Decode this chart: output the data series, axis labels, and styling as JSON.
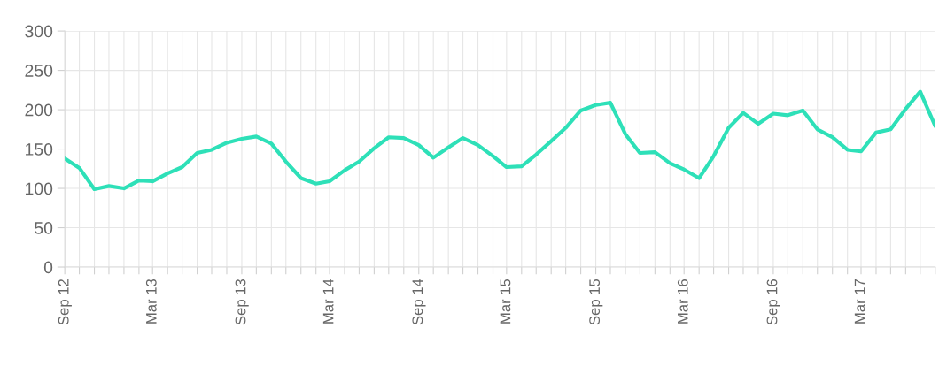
{
  "chart_data": {
    "type": "line",
    "x": [
      "2012-09",
      "2012-10",
      "2012-11",
      "2012-12",
      "2013-01",
      "2013-02",
      "2013-03",
      "2013-04",
      "2013-05",
      "2013-06",
      "2013-07",
      "2013-08",
      "2013-09",
      "2013-10",
      "2013-11",
      "2013-12",
      "2014-01",
      "2014-02",
      "2014-03",
      "2014-04",
      "2014-05",
      "2014-06",
      "2014-07",
      "2014-08",
      "2014-09",
      "2014-10",
      "2014-11",
      "2014-12",
      "2015-01",
      "2015-02",
      "2015-03",
      "2015-04",
      "2015-05",
      "2015-06",
      "2015-07",
      "2015-08",
      "2015-09",
      "2015-10",
      "2015-11",
      "2015-12",
      "2016-01",
      "2016-02",
      "2016-03",
      "2016-04",
      "2016-05",
      "2016-06",
      "2016-07",
      "2016-08",
      "2016-09",
      "2016-10",
      "2016-11",
      "2016-12",
      "2017-01",
      "2017-02",
      "2017-03",
      "2017-04",
      "2017-05",
      "2017-06",
      "2017-07",
      "2017-08"
    ],
    "series": [
      {
        "color": "#2ee0b8",
        "values": [
          138,
          126,
          99,
          103,
          100,
          110,
          109,
          119,
          127,
          145,
          149,
          158,
          163,
          166,
          157,
          134,
          113,
          106,
          109,
          123,
          134,
          151,
          165,
          164,
          155,
          139,
          152,
          164,
          155,
          141,
          127,
          128,
          143,
          160,
          177,
          199,
          206,
          209,
          169,
          145,
          146,
          132,
          124,
          113,
          141,
          177,
          196,
          182,
          195,
          193,
          199,
          175,
          165,
          149,
          147,
          171,
          175,
          201,
          223,
          179
        ]
      }
    ],
    "xlim": [
      "2012-09",
      "2017-08"
    ],
    "xticks": [
      {
        "value": "2012-09",
        "label": "Sep 12"
      },
      {
        "value": "2012-10",
        "label": null
      },
      {
        "value": "2012-11",
        "label": null
      },
      {
        "value": "2012-12",
        "label": null
      },
      {
        "value": "2013-01",
        "label": null
      },
      {
        "value": "2013-02",
        "label": null
      },
      {
        "value": "2013-03",
        "label": "Mar 13"
      },
      {
        "value": "2013-04",
        "label": null
      },
      {
        "value": "2013-05",
        "label": null
      },
      {
        "value": "2013-06",
        "label": null
      },
      {
        "value": "2013-07",
        "label": null
      },
      {
        "value": "2013-08",
        "label": null
      },
      {
        "value": "2013-09",
        "label": "Sep 13"
      },
      {
        "value": "2013-10",
        "label": null
      },
      {
        "value": "2013-11",
        "label": null
      },
      {
        "value": "2013-12",
        "label": null
      },
      {
        "value": "2014-01",
        "label": null
      },
      {
        "value": "2014-02",
        "label": null
      },
      {
        "value": "2014-03",
        "label": "Mar 14"
      },
      {
        "value": "2014-04",
        "label": null
      },
      {
        "value": "2014-05",
        "label": null
      },
      {
        "value": "2014-06",
        "label": null
      },
      {
        "value": "2014-07",
        "label": null
      },
      {
        "value": "2014-08",
        "label": null
      },
      {
        "value": "2014-09",
        "label": "Sep 14"
      },
      {
        "value": "2014-10",
        "label": null
      },
      {
        "value": "2014-11",
        "label": null
      },
      {
        "value": "2014-12",
        "label": null
      },
      {
        "value": "2015-01",
        "label": null
      },
      {
        "value": "2015-02",
        "label": null
      },
      {
        "value": "2015-03",
        "label": "Mar 15"
      },
      {
        "value": "2015-04",
        "label": null
      },
      {
        "value": "2015-05",
        "label": null
      },
      {
        "value": "2015-06",
        "label": null
      },
      {
        "value": "2015-07",
        "label": null
      },
      {
        "value": "2015-08",
        "label": null
      },
      {
        "value": "2015-09",
        "label": "Sep 15"
      },
      {
        "value": "2015-10",
        "label": null
      },
      {
        "value": "2015-11",
        "label": null
      },
      {
        "value": "2015-12",
        "label": null
      },
      {
        "value": "2016-01",
        "label": null
      },
      {
        "value": "2016-02",
        "label": null
      },
      {
        "value": "2016-03",
        "label": "Mar 16"
      },
      {
        "value": "2016-04",
        "label": null
      },
      {
        "value": "2016-05",
        "label": null
      },
      {
        "value": "2016-06",
        "label": null
      },
      {
        "value": "2016-07",
        "label": null
      },
      {
        "value": "2016-08",
        "label": null
      },
      {
        "value": "2016-09",
        "label": "Sep 16"
      },
      {
        "value": "2016-10",
        "label": null
      },
      {
        "value": "2016-11",
        "label": null
      },
      {
        "value": "2016-12",
        "label": null
      },
      {
        "value": "2017-01",
        "label": null
      },
      {
        "value": "2017-02",
        "label": null
      },
      {
        "value": "2017-03",
        "label": "Mar 17"
      },
      {
        "value": "2017-04",
        "label": null
      },
      {
        "value": "2017-05",
        "label": null
      },
      {
        "value": "2017-06",
        "label": null
      },
      {
        "value": "2017-07",
        "label": null
      },
      {
        "value": "2017-08",
        "label": null
      }
    ],
    "ylim": [
      0,
      300
    ],
    "yticks": [
      0,
      50,
      100,
      150,
      200,
      250,
      300
    ],
    "grid": true,
    "marker": "none",
    "line_style": "solid"
  }
}
